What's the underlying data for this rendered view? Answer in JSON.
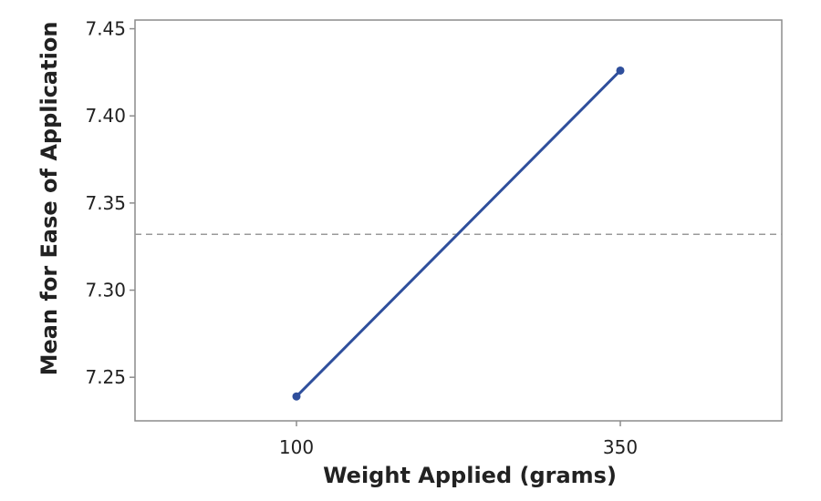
{
  "chart_data": {
    "type": "line",
    "title": "",
    "xlabel": "Weight Applied (grams)",
    "ylabel": "Mean for Ease of Application",
    "categories": [
      "100",
      "350"
    ],
    "series": [
      {
        "values": [
          7.239,
          7.426
        ],
        "color": "#2f4f9c"
      }
    ],
    "reference_line": {
      "value": 7.332,
      "style": "dashed",
      "color": "#9a9a9a"
    },
    "ylim": [
      7.225,
      7.455
    ],
    "yticks": [
      7.25,
      7.3,
      7.35,
      7.4,
      7.45
    ],
    "ytick_labels": [
      "7.25",
      "7.30",
      "7.35",
      "7.40",
      "7.45"
    ],
    "grid": false,
    "legend": "none",
    "colors": {
      "line": "#2f4f9c",
      "frame": "#8c8c8c",
      "reference": "#9a9a9a",
      "text": "#222222"
    }
  }
}
